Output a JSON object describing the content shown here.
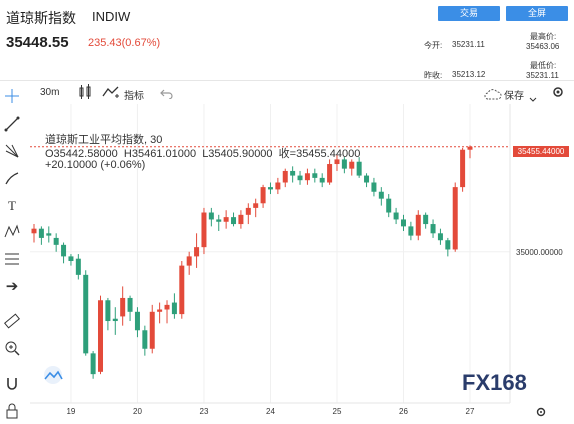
{
  "header": {
    "title": "道琼斯指数",
    "ticker": "INDIW",
    "trade_btn": "交易",
    "fullscreen_btn": "全屏",
    "price": "35448.55",
    "change": "235.43(0.67%)",
    "today_open_label": "今开:",
    "today_open": "35231.11",
    "prev_close_label": "昨收:",
    "prev_close": "35213.12",
    "high_label": "最高价:",
    "high": "35463.06",
    "low_label": "最低价:",
    "low": "35231.11"
  },
  "toolbar": {
    "interval": "30m",
    "indicator_label": "指标",
    "save_label": "保存"
  },
  "legend": {
    "name": "道琼斯工业平均指数",
    "interval": "30",
    "ohlc": "O35442.58000  H35461.01000  L35405.90000  收=35455.44000",
    "delta": "+20.10000 (+0.06%)"
  },
  "watermark": "FX168",
  "colors": {
    "up": "#e34a3a",
    "down": "#2e9f7a",
    "accent": "#3b8ee6"
  },
  "chart_data": {
    "type": "candlestick",
    "last_price_label": "35455.44000",
    "ylim": [
      34345,
      35640
    ],
    "y_ticks": [
      35000
    ],
    "y_tick_labels": [
      "35000.00000"
    ],
    "x_ticks": [
      {
        "label": "19",
        "index": 5
      },
      {
        "label": "20",
        "index": 14
      },
      {
        "label": "23",
        "index": 23
      },
      {
        "label": "24",
        "index": 32
      },
      {
        "label": "25",
        "index": 41
      },
      {
        "label": "26",
        "index": 50
      },
      {
        "label": "27",
        "index": 59
      }
    ],
    "candles": [
      [
        35080,
        35120,
        35040,
        35100
      ],
      [
        35100,
        35110,
        35030,
        35060
      ],
      [
        35080,
        35110,
        35040,
        35070
      ],
      [
        35060,
        35080,
        35000,
        35030
      ],
      [
        35030,
        35040,
        34950,
        34980
      ],
      [
        34980,
        34990,
        34940,
        34960
      ],
      [
        34970,
        34990,
        34880,
        34900
      ],
      [
        34900,
        34920,
        34550,
        34560
      ],
      [
        34560,
        34570,
        34450,
        34470
      ],
      [
        34480,
        34810,
        34470,
        34790
      ],
      [
        34790,
        34800,
        34660,
        34700
      ],
      [
        34710,
        34760,
        34640,
        34700
      ],
      [
        34720,
        34850,
        34680,
        34800
      ],
      [
        34800,
        34810,
        34700,
        34740
      ],
      [
        34740,
        34760,
        34630,
        34660
      ],
      [
        34660,
        34680,
        34550,
        34580
      ],
      [
        34580,
        34770,
        34560,
        34740
      ],
      [
        34740,
        34780,
        34690,
        34750
      ],
      [
        34750,
        34790,
        34690,
        34770
      ],
      [
        34780,
        34820,
        34710,
        34730
      ],
      [
        34730,
        34960,
        34710,
        34940
      ],
      [
        34940,
        35000,
        34900,
        34980
      ],
      [
        34980,
        35080,
        34930,
        35020
      ],
      [
        35020,
        35190,
        34990,
        35170
      ],
      [
        35170,
        35190,
        35110,
        35140
      ],
      [
        35140,
        35160,
        35090,
        35130
      ],
      [
        35130,
        35180,
        35100,
        35150
      ],
      [
        35150,
        35170,
        35110,
        35120
      ],
      [
        35120,
        35180,
        35100,
        35160
      ],
      [
        35160,
        35210,
        35120,
        35190
      ],
      [
        35190,
        35230,
        35150,
        35210
      ],
      [
        35210,
        35290,
        35190,
        35280
      ],
      [
        35280,
        35300,
        35250,
        35270
      ],
      [
        35270,
        35320,
        35250,
        35300
      ],
      [
        35300,
        35360,
        35280,
        35350
      ],
      [
        35350,
        35370,
        35300,
        35330
      ],
      [
        35330,
        35350,
        35290,
        35310
      ],
      [
        35310,
        35360,
        35290,
        35340
      ],
      [
        35340,
        35360,
        35300,
        35320
      ],
      [
        35320,
        35340,
        35280,
        35300
      ],
      [
        35300,
        35400,
        35290,
        35380
      ],
      [
        35380,
        35420,
        35350,
        35400
      ],
      [
        35400,
        35410,
        35340,
        35360
      ],
      [
        35360,
        35400,
        35330,
        35390
      ],
      [
        35390,
        35410,
        35320,
        35330
      ],
      [
        35330,
        35340,
        35280,
        35300
      ],
      [
        35300,
        35320,
        35240,
        35260
      ],
      [
        35260,
        35280,
        35200,
        35230
      ],
      [
        35230,
        35250,
        35150,
        35170
      ],
      [
        35170,
        35190,
        35120,
        35140
      ],
      [
        35140,
        35160,
        35090,
        35110
      ],
      [
        35110,
        35130,
        35050,
        35070
      ],
      [
        35070,
        35180,
        35050,
        35160
      ],
      [
        35160,
        35170,
        35100,
        35120
      ],
      [
        35120,
        35140,
        35060,
        35080
      ],
      [
        35080,
        35100,
        35030,
        35050
      ],
      [
        35050,
        35060,
        34980,
        35010
      ],
      [
        35010,
        35300,
        35000,
        35280
      ],
      [
        35280,
        35450,
        35260,
        35442
      ],
      [
        35442,
        35461,
        35405,
        35455
      ]
    ]
  }
}
